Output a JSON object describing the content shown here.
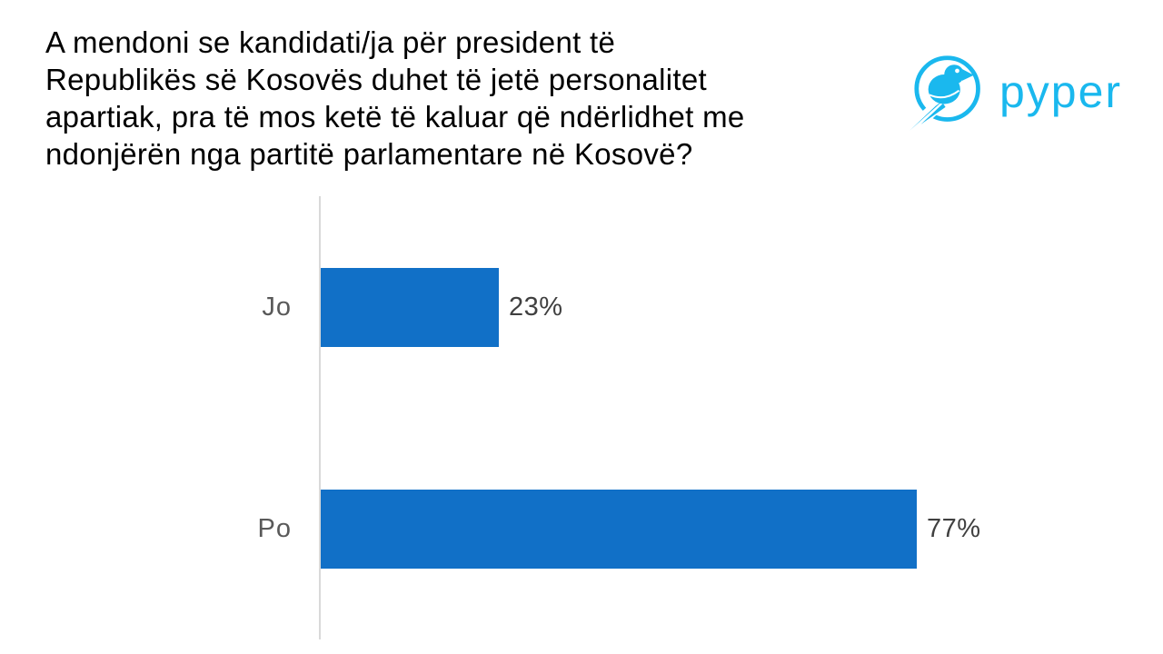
{
  "page": {
    "background": "#FFFFFF"
  },
  "header": {
    "title_lines": [
      "A mendoni se kandidati/ja për president të",
      "Republikës së Kosovës duhet të jetë personalitet",
      "apartiak, pra të mos ketë të kaluar që ndërlidhet me",
      "ndonjërën nga partitë parlamentare në Kosovë?"
    ]
  },
  "logo": {
    "text": "pyper",
    "icon": "pyper-bird-icon",
    "color": "#1AB8EE"
  },
  "chart_data": {
    "type": "bar",
    "orientation": "horizontal",
    "title": "A mendoni se kandidati/ja për president të Republikës së Kosovës duhet të jetë personalitet apartiak, pra të mos ketë të kaluar që ndërlidhet me ndonjërën nga partitë parlamentare në Kosovë?",
    "categories": [
      "Jo",
      "Po"
    ],
    "values": [
      23,
      77
    ],
    "data_labels": [
      "23%",
      "77%"
    ],
    "xlabel": "",
    "ylabel": "",
    "xlim": [
      0,
      100
    ],
    "grid": false,
    "legend": false,
    "bar_color": "#1170C7",
    "axis_line_color": "#D9D9D9",
    "category_label_color": "#595959",
    "data_label_color": "#404040"
  }
}
